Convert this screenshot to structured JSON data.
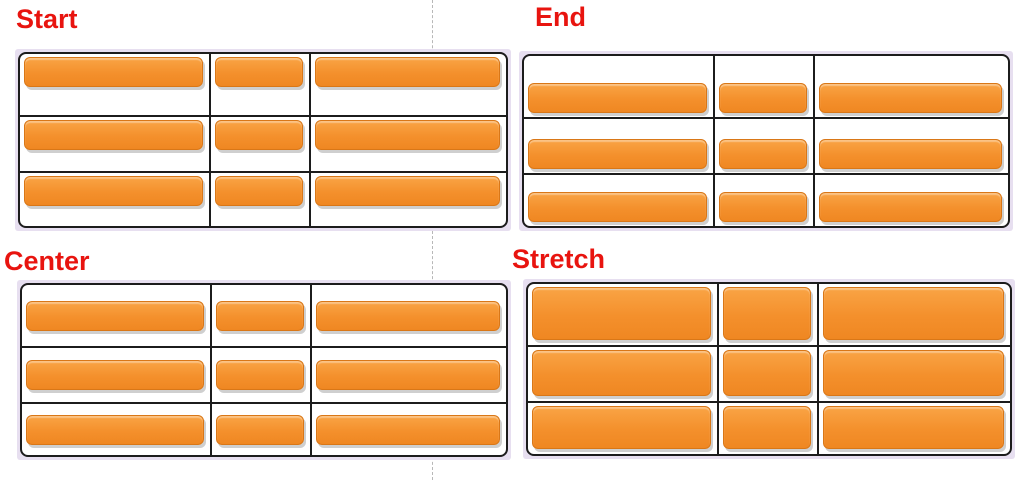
{
  "colors": {
    "label": "#e8140f",
    "item": "#f5932e",
    "grid_line": "#1c1c1c"
  },
  "panels": [
    {
      "id": "start",
      "label": "Start",
      "align": "start",
      "rows": 3,
      "columns": 3
    },
    {
      "id": "end",
      "label": "End",
      "align": "end",
      "rows": 3,
      "columns": 3
    },
    {
      "id": "center",
      "label": "Center",
      "align": "center",
      "rows": 3,
      "columns": 3
    },
    {
      "id": "stretch",
      "label": "Stretch",
      "align": "stretch",
      "rows": 3,
      "columns": 3
    }
  ]
}
